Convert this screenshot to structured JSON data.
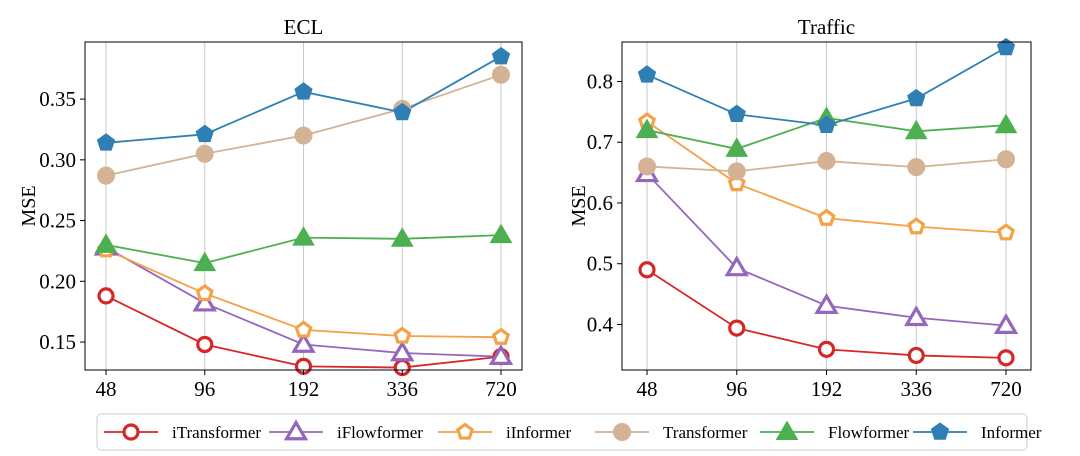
{
  "chart_data": [
    {
      "type": "line",
      "title": "ECL",
      "xlabel": "",
      "ylabel": "MSE",
      "categories": [
        "48",
        "96",
        "192",
        "336",
        "720"
      ],
      "ylim": [
        0.127,
        0.397
      ],
      "yticks": [
        0.15,
        0.2,
        0.25,
        0.3,
        0.35
      ],
      "ytick_labels": [
        "0.15",
        "0.20",
        "0.25",
        "0.30",
        "0.35"
      ],
      "grid": "x",
      "series": [
        {
          "name": "iTransformer",
          "values": [
            0.188,
            0.148,
            0.13,
            0.129,
            0.138
          ]
        },
        {
          "name": "iFlowformer",
          "values": [
            0.228,
            0.182,
            0.148,
            0.141,
            0.138
          ]
        },
        {
          "name": "iInformer",
          "values": [
            0.226,
            0.19,
            0.16,
            0.155,
            0.154
          ]
        },
        {
          "name": "Transformer",
          "values": [
            0.287,
            0.305,
            0.32,
            0.342,
            0.37
          ]
        },
        {
          "name": "Flowformer",
          "values": [
            0.23,
            0.215,
            0.236,
            0.235,
            0.238
          ]
        },
        {
          "name": "Informer",
          "values": [
            0.314,
            0.321,
            0.356,
            0.339,
            0.385
          ]
        }
      ]
    },
    {
      "type": "line",
      "title": "Traffic",
      "xlabel": "",
      "ylabel": "MSE",
      "categories": [
        "48",
        "96",
        "192",
        "336",
        "720"
      ],
      "ylim": [
        0.325,
        0.865
      ],
      "yticks": [
        0.4,
        0.5,
        0.6,
        0.7,
        0.8
      ],
      "ytick_labels": [
        "0.4",
        "0.5",
        "0.6",
        "0.7",
        "0.8"
      ],
      "grid": "x",
      "series": [
        {
          "name": "iTransformer",
          "values": [
            0.49,
            0.394,
            0.359,
            0.349,
            0.345
          ]
        },
        {
          "name": "iFlowformer",
          "values": [
            0.648,
            0.493,
            0.431,
            0.411,
            0.398
          ]
        },
        {
          "name": "iInformer",
          "values": [
            0.734,
            0.632,
            0.575,
            0.561,
            0.551
          ]
        },
        {
          "name": "Transformer",
          "values": [
            0.66,
            0.652,
            0.669,
            0.659,
            0.672
          ]
        },
        {
          "name": "Flowformer",
          "values": [
            0.72,
            0.689,
            0.74,
            0.718,
            0.728
          ]
        },
        {
          "name": "Informer",
          "values": [
            0.811,
            0.746,
            0.728,
            0.772,
            0.856
          ]
        }
      ]
    }
  ],
  "legend": {
    "position": "bottom-center",
    "entries": [
      "iTransformer",
      "iFlowformer",
      "iInformer",
      "Transformer",
      "Flowformer",
      "Informer"
    ]
  },
  "styles": {
    "iTransformer": {
      "color": "#d62728",
      "marker": "circle-open"
    },
    "iFlowformer": {
      "color": "#9467bd",
      "marker": "triangle-open"
    },
    "iInformer": {
      "color": "#f5a146",
      "marker": "pentagon-open"
    },
    "Transformer": {
      "color": "#d3b295",
      "marker": "circle-filled"
    },
    "Flowformer": {
      "color": "#4caf50",
      "marker": "triangle-filled"
    },
    "Informer": {
      "color": "#2f7fb5",
      "marker": "pentagon-filled"
    }
  }
}
